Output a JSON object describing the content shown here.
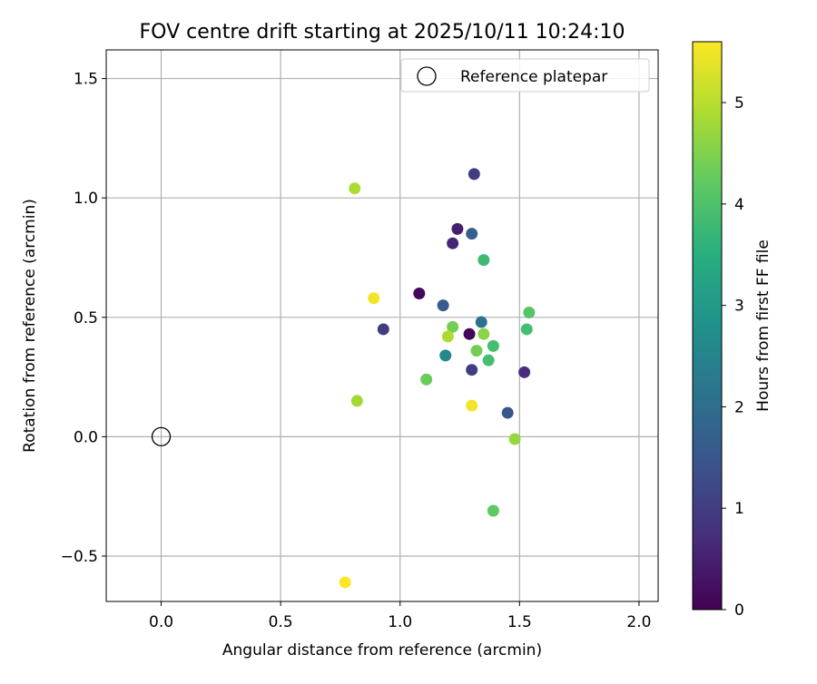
{
  "chart_data": {
    "type": "scatter",
    "title": "FOV centre drift starting at 2025/10/11 10:24:10",
    "xlabel": "Angular distance from reference (arcmin)",
    "ylabel": "Rotation from reference (arcmin)",
    "xlim": [
      -0.23,
      2.08
    ],
    "ylim": [
      -0.69,
      1.62
    ],
    "x_ticks": [
      0.0,
      0.5,
      1.0,
      1.5,
      2.0
    ],
    "x_tick_labels": [
      "0.0",
      "0.5",
      "1.0",
      "1.5",
      "2.0"
    ],
    "y_ticks": [
      -0.5,
      0.0,
      0.5,
      1.0,
      1.5
    ],
    "y_tick_labels": [
      "−0.5",
      "0.0",
      "0.5",
      "1.0",
      "1.5"
    ],
    "grid": true,
    "legend": {
      "placement": "top-right",
      "entries": [
        "Reference platepar"
      ]
    },
    "reference_point": {
      "x": 0.0,
      "y": 0.0,
      "marker": "open-circle",
      "color": "#000000"
    },
    "colorbar": {
      "label": "Hours from first FF file",
      "range": [
        0,
        5.6
      ],
      "ticks": [
        0,
        1,
        2,
        3,
        4,
        5
      ],
      "tick_labels": [
        "0",
        "1",
        "2",
        "3",
        "4",
        "5"
      ],
      "colormap": "viridis"
    },
    "points": [
      {
        "x": 1.08,
        "y": 0.6,
        "c": 0.1
      },
      {
        "x": 1.29,
        "y": 0.43,
        "c": 0.1
      },
      {
        "x": 1.24,
        "y": 0.87,
        "c": 0.5
      },
      {
        "x": 1.22,
        "y": 0.81,
        "c": 0.6
      },
      {
        "x": 1.52,
        "y": 0.27,
        "c": 0.7
      },
      {
        "x": 1.31,
        "y": 1.1,
        "c": 1.0
      },
      {
        "x": 0.93,
        "y": 0.45,
        "c": 1.0
      },
      {
        "x": 1.3,
        "y": 0.28,
        "c": 1.0
      },
      {
        "x": 1.45,
        "y": 0.1,
        "c": 1.5
      },
      {
        "x": 1.18,
        "y": 0.55,
        "c": 1.6
      },
      {
        "x": 1.3,
        "y": 0.85,
        "c": 1.7
      },
      {
        "x": 1.34,
        "y": 0.48,
        "c": 2.1
      },
      {
        "x": 1.19,
        "y": 0.34,
        "c": 2.6
      },
      {
        "x": 1.35,
        "y": 0.74,
        "c": 3.8
      },
      {
        "x": 1.53,
        "y": 0.45,
        "c": 3.9
      },
      {
        "x": 1.39,
        "y": 0.38,
        "c": 3.9
      },
      {
        "x": 1.37,
        "y": 0.32,
        "c": 3.9
      },
      {
        "x": 1.54,
        "y": 0.52,
        "c": 4.1
      },
      {
        "x": 1.39,
        "y": -0.31,
        "c": 4.2
      },
      {
        "x": 1.11,
        "y": 0.24,
        "c": 4.3
      },
      {
        "x": 1.22,
        "y": 0.46,
        "c": 4.4
      },
      {
        "x": 1.32,
        "y": 0.36,
        "c": 4.4
      },
      {
        "x": 1.35,
        "y": 0.43,
        "c": 4.6
      },
      {
        "x": 1.48,
        "y": -0.01,
        "c": 4.7
      },
      {
        "x": 0.82,
        "y": 0.15,
        "c": 4.8
      },
      {
        "x": 1.2,
        "y": 0.42,
        "c": 4.9
      },
      {
        "x": 0.81,
        "y": 1.04,
        "c": 4.9
      },
      {
        "x": 0.89,
        "y": 0.58,
        "c": 5.5
      },
      {
        "x": 1.3,
        "y": 0.13,
        "c": 5.5
      },
      {
        "x": 0.77,
        "y": -0.61,
        "c": 5.6
      }
    ]
  }
}
